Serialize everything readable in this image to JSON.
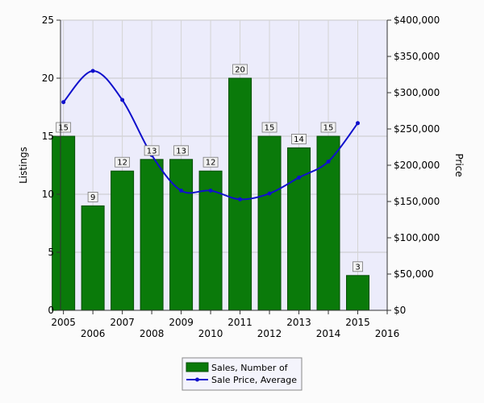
{
  "chart_data": {
    "type": "bar",
    "title": "",
    "xlabel": "",
    "ylabel": "Listings",
    "y2label": "Price",
    "xlim": [
      2004.9,
      2016
    ],
    "ylim": [
      0,
      25
    ],
    "y2lim": [
      0,
      400000
    ],
    "x_ticks_upper": [
      "2005",
      "2007",
      "2009",
      "2011",
      "2013",
      "2015"
    ],
    "x_ticks_lower": [
      "2006",
      "2008",
      "2010",
      "2012",
      "2014",
      "2016"
    ],
    "y_ticks": [
      "0",
      "5",
      "10",
      "15",
      "20",
      "25"
    ],
    "y2_ticks": [
      "$0",
      "$50,000",
      "$100,000",
      "$150,000",
      "$200,000",
      "$250,000",
      "$300,000",
      "$350,000",
      "$400,000"
    ],
    "grid": true,
    "legend_position": "bottom-center",
    "colors": {
      "bar": "#0a7a0a",
      "line": "#1010cc",
      "plot_bg": "#ececfb"
    },
    "series": [
      {
        "name": "Sales, Number of",
        "type": "bar",
        "x": [
          2005,
          2006,
          2007,
          2008,
          2009,
          2010,
          2011,
          2012,
          2013,
          2014,
          2015
        ],
        "values": [
          15,
          9,
          12,
          13,
          13,
          12,
          20,
          15,
          14,
          15,
          3
        ],
        "labels": [
          "15",
          "9",
          "12",
          "13",
          "13",
          "12",
          "20",
          "15",
          "14",
          "15",
          "3"
        ]
      },
      {
        "name": "Sale Price, Average",
        "type": "line",
        "axis": "right",
        "x": [
          2005,
          2006,
          2007,
          2008,
          2009,
          2010,
          2011,
          2012,
          2013,
          2014,
          2015
        ],
        "values": [
          287000,
          330000,
          290000,
          214000,
          165000,
          165000,
          153000,
          161000,
          183000,
          205000,
          258000
        ]
      }
    ]
  }
}
